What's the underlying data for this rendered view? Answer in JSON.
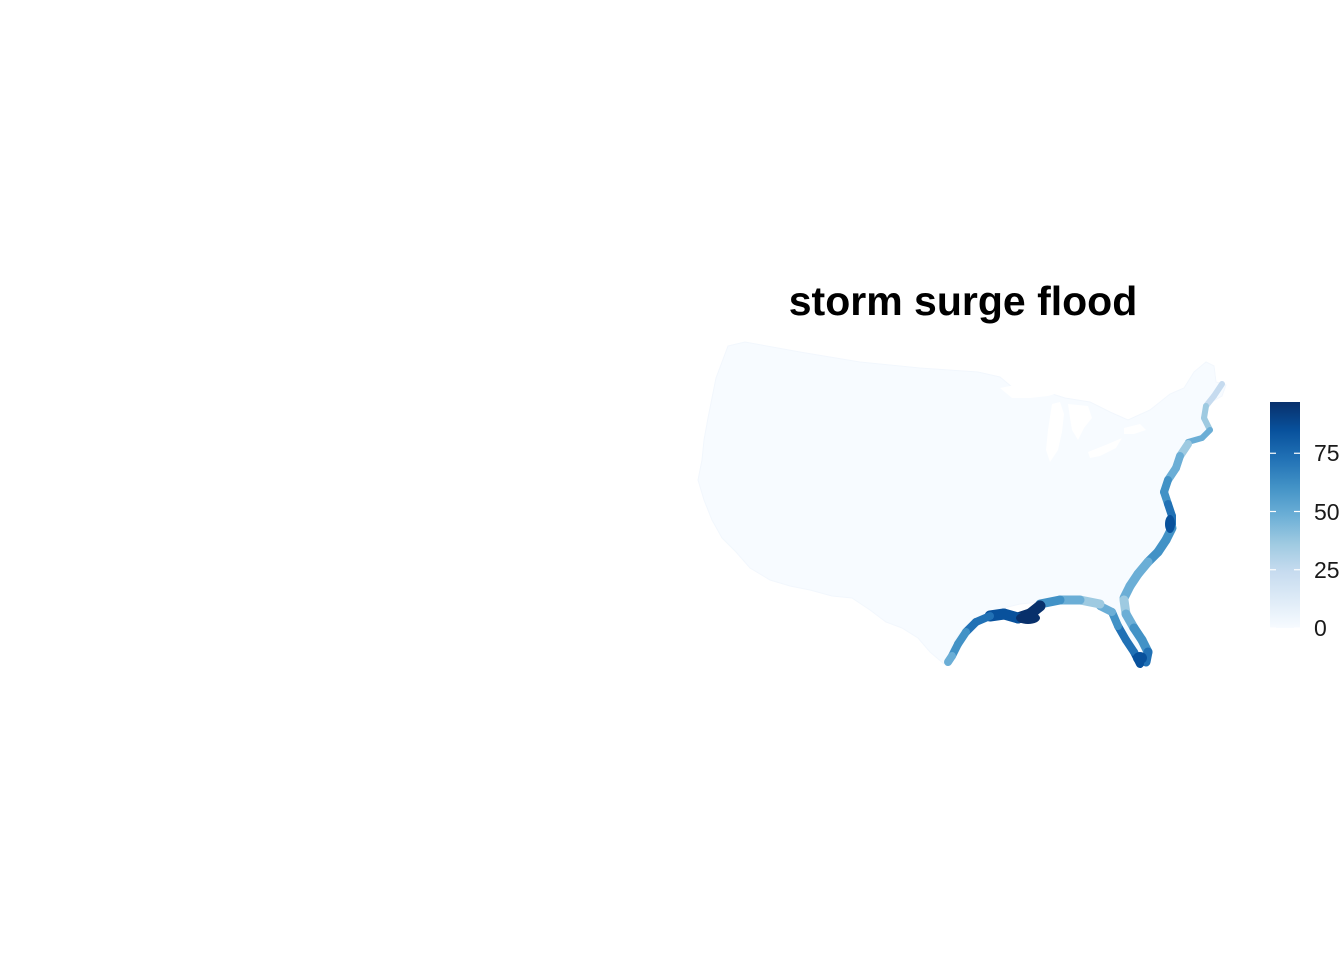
{
  "map": {
    "title": "storm surge flood",
    "region": "contiguous United States",
    "land_fill_color": "#f7fbff",
    "coast_gradient_colors": [
      "#deebf7",
      "#c6dbef",
      "#9ecae1",
      "#6baed6",
      "#4292c6",
      "#2171b5",
      "#08519c",
      "#08306b"
    ]
  },
  "legend": {
    "scale": "continuous",
    "min": 0,
    "max": 97,
    "ticks": [
      {
        "value": 0,
        "label": "0"
      },
      {
        "value": 25,
        "label": "25"
      },
      {
        "value": 50,
        "label": "50"
      },
      {
        "value": 75,
        "label": "75"
      }
    ],
    "colors": [
      "#f7fbff",
      "#deebf7",
      "#c6dbef",
      "#9ecae1",
      "#6baed6",
      "#4292c6",
      "#2171b5",
      "#08519c",
      "#08306b"
    ]
  }
}
